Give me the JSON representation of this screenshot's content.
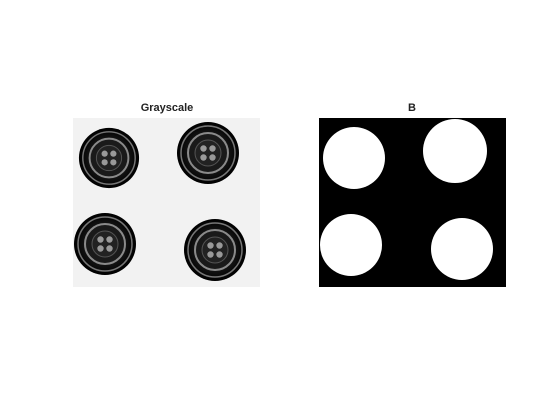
{
  "panels": [
    {
      "title": "Grayscale"
    },
    {
      "title": "B"
    }
  ]
}
